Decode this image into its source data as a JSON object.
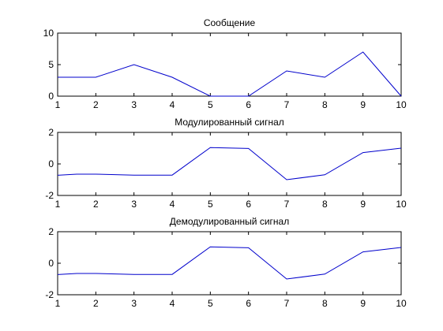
{
  "chart_data": [
    {
      "type": "line",
      "title": "Сообщение",
      "xlim": [
        1,
        10
      ],
      "ylim": [
        0,
        10
      ],
      "xticks": [
        1,
        2,
        3,
        4,
        5,
        6,
        7,
        8,
        9,
        10
      ],
      "yticks": [
        0,
        5,
        10
      ],
      "series": [
        {
          "color": "#0000cc",
          "x": [
            1,
            2,
            3,
            4,
            5,
            6,
            7,
            8,
            9,
            10
          ],
          "y": [
            3,
            3,
            5,
            3,
            0,
            0,
            4,
            3,
            7,
            0
          ]
        }
      ]
    },
    {
      "type": "line",
      "title": "Модулированный сигнал",
      "xlim": [
        1,
        10
      ],
      "ylim": [
        -2,
        2
      ],
      "xticks": [
        1,
        2,
        3,
        4,
        5,
        6,
        7,
        8,
        9,
        10
      ],
      "yticks": [
        -2,
        0,
        2
      ],
      "series": [
        {
          "color": "#0000cc",
          "x": [
            1,
            1.5,
            2,
            3,
            4,
            5,
            6,
            7,
            8,
            9,
            10
          ],
          "y": [
            -0.72,
            -0.65,
            -0.65,
            -0.71,
            -0.71,
            1.04,
            0.98,
            -1.0,
            -0.69,
            0.72,
            1.0
          ]
        }
      ]
    },
    {
      "type": "line",
      "title": "Демодулированный сигнал",
      "xlim": [
        1,
        10
      ],
      "ylim": [
        -2,
        2
      ],
      "xticks": [
        1,
        2,
        3,
        4,
        5,
        6,
        7,
        8,
        9,
        10
      ],
      "yticks": [
        -2,
        0,
        2
      ],
      "series": [
        {
          "color": "#0000cc",
          "x": [
            1,
            1.5,
            2,
            3,
            4,
            5,
            6,
            7,
            8,
            9,
            10
          ],
          "y": [
            -0.72,
            -0.65,
            -0.65,
            -0.71,
            -0.71,
            1.04,
            0.98,
            -1.0,
            -0.69,
            0.72,
            1.0
          ]
        }
      ]
    }
  ]
}
